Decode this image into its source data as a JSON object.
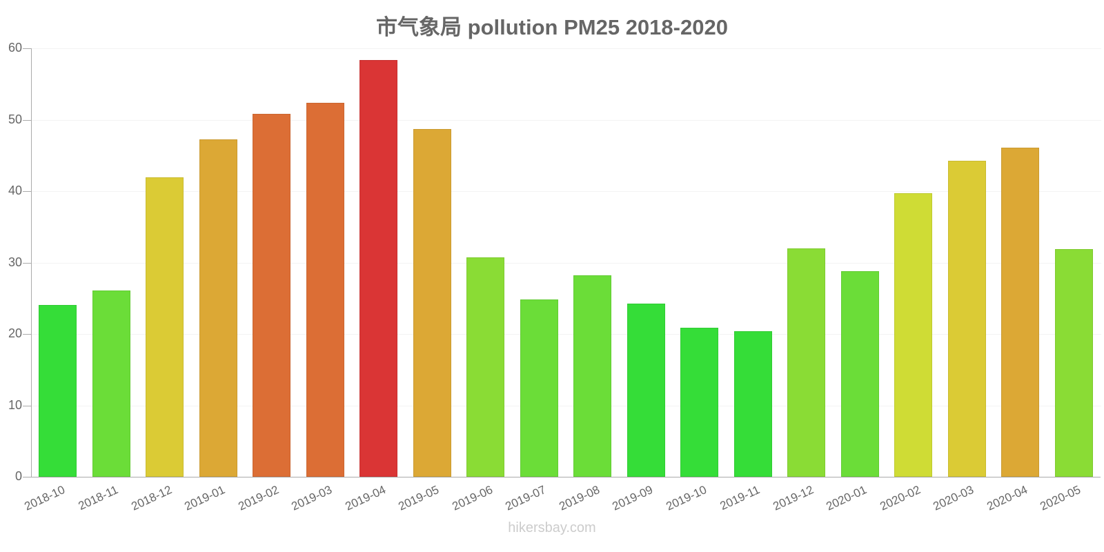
{
  "chart_data": {
    "type": "bar",
    "title": "市气象局 pollution PM25 2018-2020",
    "xlabel": "",
    "ylabel": "",
    "ylim": [
      0,
      60
    ],
    "yticks": [
      0,
      10,
      20,
      30,
      40,
      50,
      60
    ],
    "grid": true,
    "legend": null,
    "categories": [
      "2018-10",
      "2018-11",
      "2018-12",
      "2019-01",
      "2019-02",
      "2019-03",
      "2019-04",
      "2019-05",
      "2019-06",
      "2019-07",
      "2019-08",
      "2019-09",
      "2019-10",
      "2019-11",
      "2019-12",
      "2020-01",
      "2020-02",
      "2020-03",
      "2020-04",
      "2020-05"
    ],
    "values": [
      24.1,
      26.1,
      41.9,
      47.2,
      50.8,
      52.4,
      58.4,
      48.7,
      30.7,
      24.8,
      28.2,
      24.3,
      20.9,
      20.4,
      32.0,
      28.8,
      39.7,
      44.3,
      46.1,
      31.9
    ],
    "colors": [
      "#35dd38",
      "#6bdd38",
      "#dbcb35",
      "#dca835",
      "#dc6e35",
      "#dc6e35",
      "#da3535",
      "#dca835",
      "#8adc35",
      "#6bdd38",
      "#6bdd38",
      "#35dd38",
      "#35dd38",
      "#35dd38",
      "#8adc35",
      "#6bdd38",
      "#cfdc35",
      "#dbcb35",
      "#dca835",
      "#8adc35"
    ]
  },
  "watermark": "hikersbay.com"
}
